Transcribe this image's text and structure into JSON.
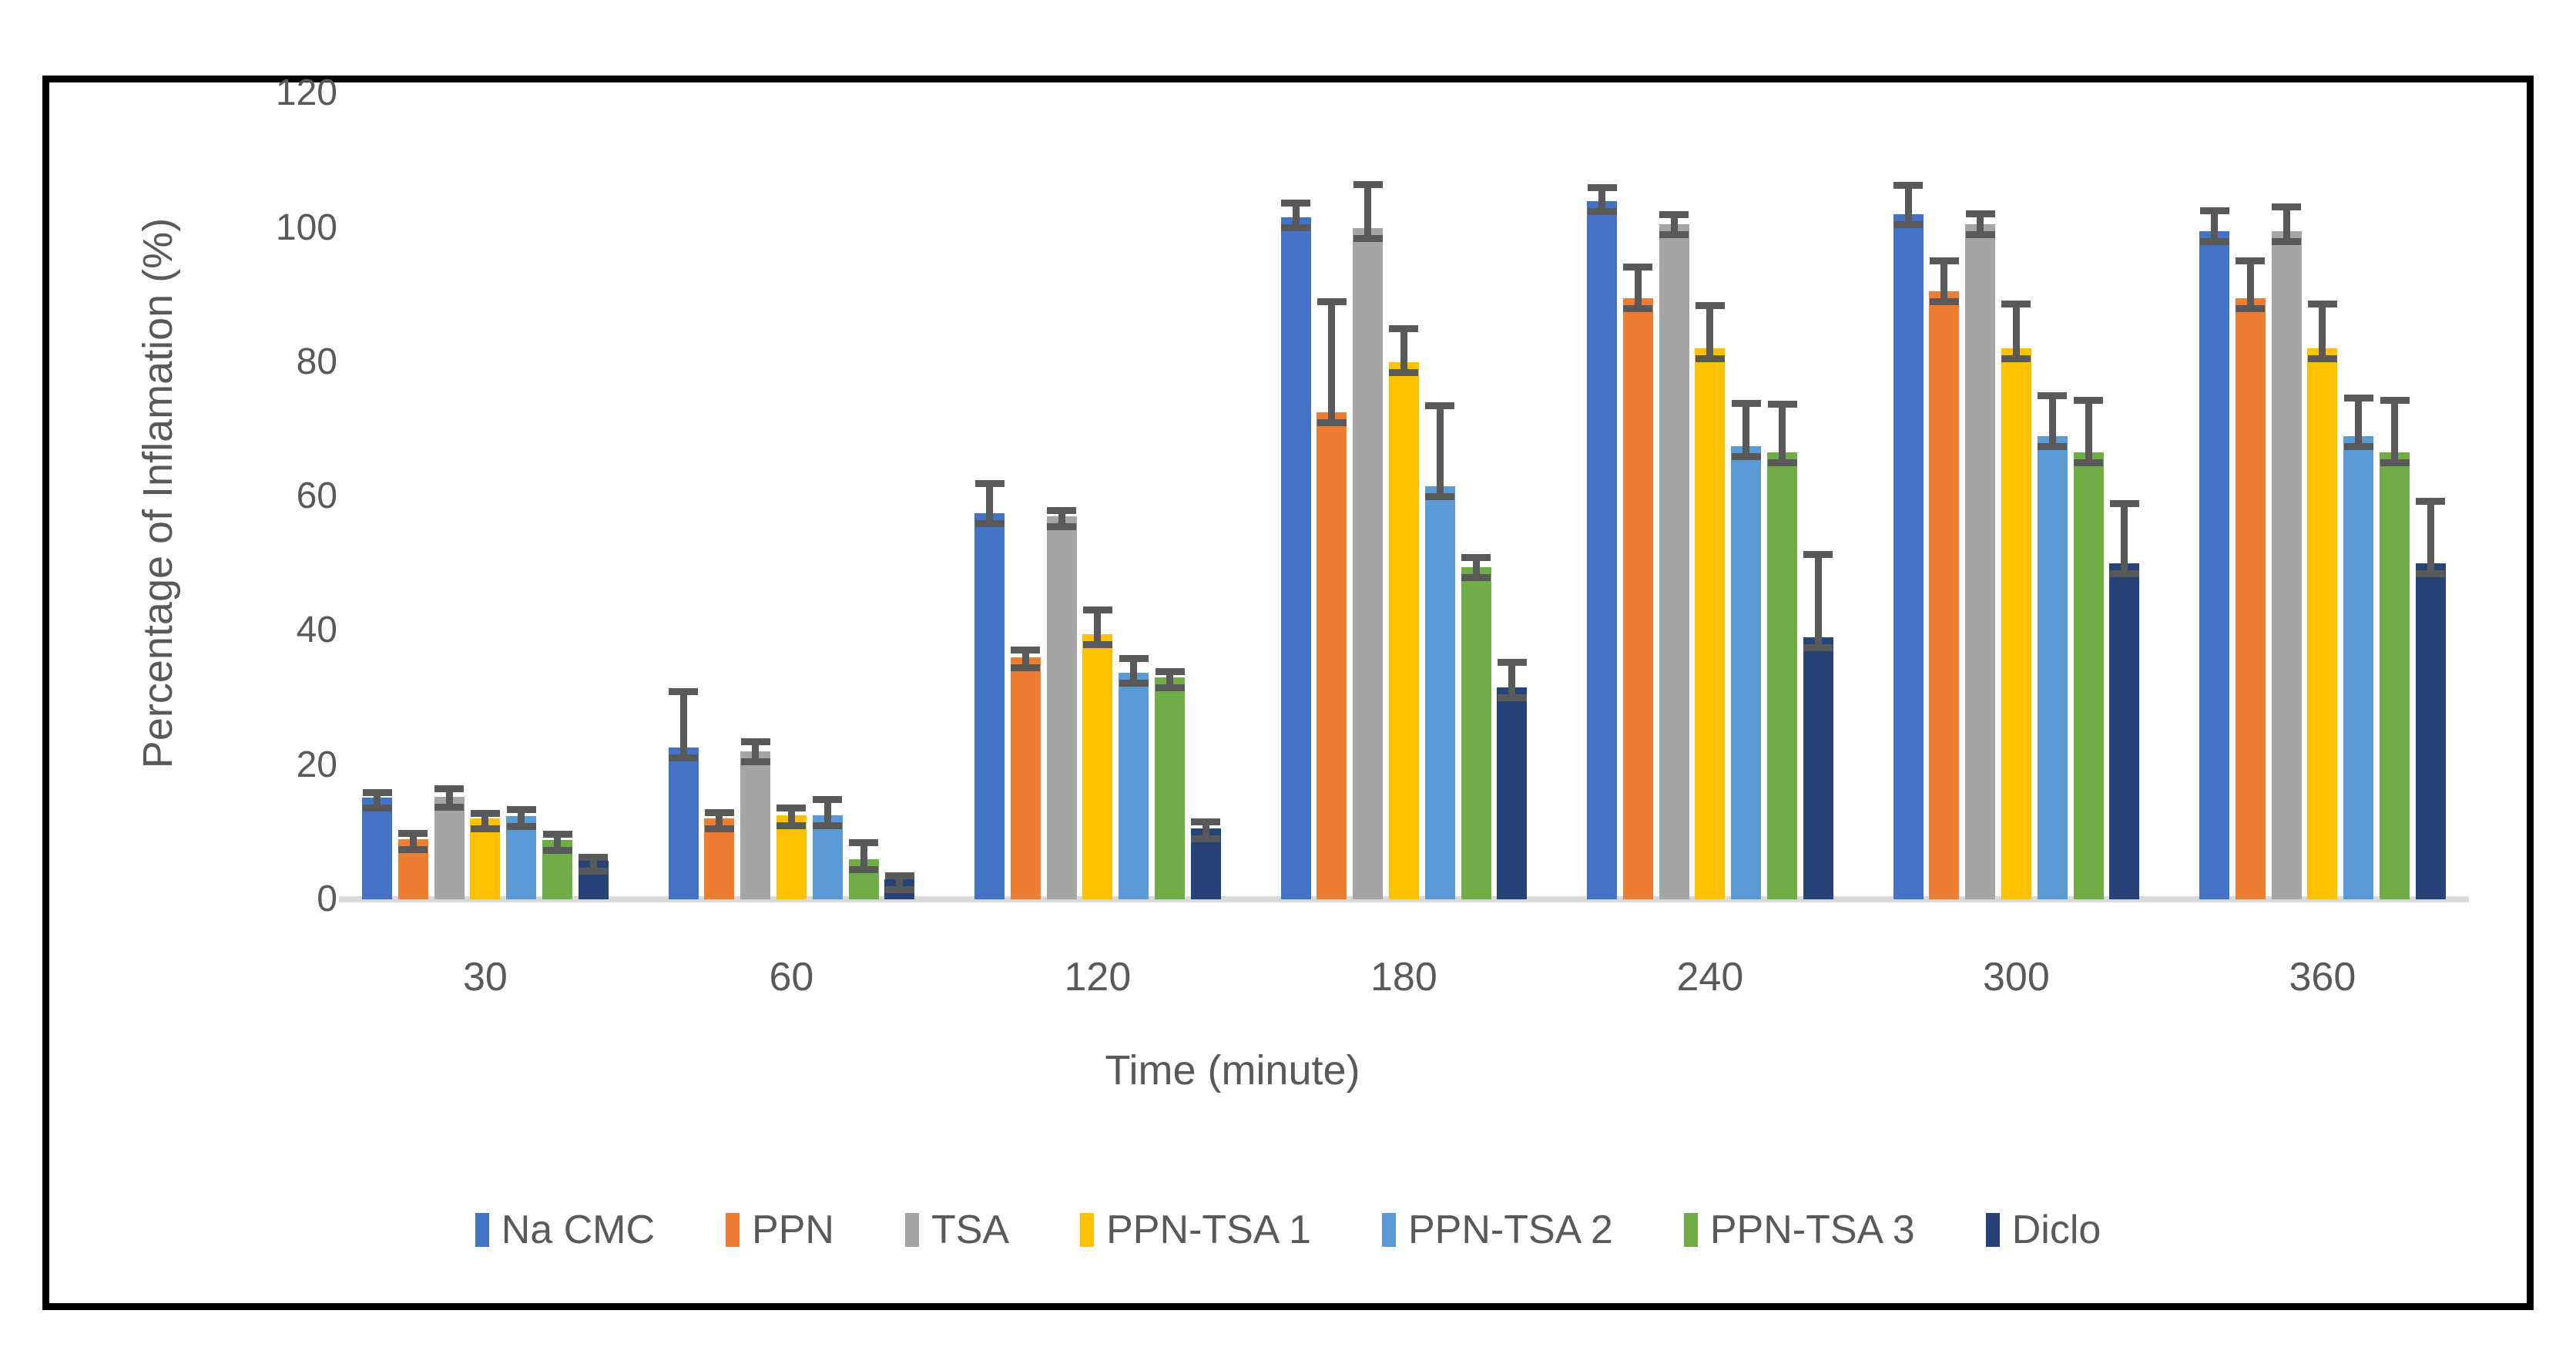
{
  "chart_data": {
    "type": "bar",
    "title": "",
    "xlabel": "Time (minute)",
    "ylabel": "Percentage of Inflamation (%)",
    "categories": [
      "30",
      "60",
      "120",
      "180",
      "240",
      "300",
      "360"
    ],
    "y_ticks": [
      0,
      20,
      40,
      60,
      80,
      100,
      120
    ],
    "ylim": [
      0,
      120
    ],
    "grid": false,
    "legend_position": "bottom-center",
    "bar_unit": "percent inflammation",
    "error_bars": "plus direction, capped",
    "colors": {
      "axis_text": "#595959",
      "error_bar": "#595959",
      "baseline": "#D9D9D9",
      "frame_border": "#000000",
      "background": "#FFFFFF"
    },
    "series": [
      {
        "name": "Na CMC",
        "color": "#4472C4",
        "values": [
          15.2,
          22.6,
          57.5,
          101.5,
          104.0,
          102.0,
          99.5
        ],
        "errors": [
          0.8,
          8.4,
          4.5,
          2.2,
          2.0,
          4.4,
          3.1
        ]
      },
      {
        "name": "PPN",
        "color": "#ED7D31",
        "values": [
          9.0,
          12.0,
          36.0,
          72.5,
          89.5,
          90.5,
          89.5
        ],
        "errors": [
          0.9,
          1.0,
          1.2,
          16.5,
          4.7,
          4.6,
          5.6
        ]
      },
      {
        "name": "TSA",
        "color": "#A5A5A5",
        "values": [
          15.3,
          22.0,
          57.0,
          100.0,
          100.5,
          100.5,
          99.5
        ],
        "errors": [
          1.2,
          1.5,
          1.0,
          6.5,
          1.5,
          1.6,
          3.7
        ]
      },
      {
        "name": "PPN-TSA 1",
        "color": "#FFC000",
        "values": [
          12.0,
          12.5,
          39.5,
          80.0,
          82.0,
          82.0,
          82.0
        ],
        "errors": [
          0.9,
          1.2,
          3.6,
          5.0,
          6.5,
          6.7,
          6.7
        ]
      },
      {
        "name": "PPN-TSA 2",
        "color": "#5B9BD5",
        "values": [
          12.4,
          12.5,
          33.7,
          61.5,
          67.5,
          69.0,
          69.0
        ],
        "errors": [
          1.0,
          2.4,
          2.2,
          12.0,
          6.4,
          6.0,
          5.7
        ]
      },
      {
        "name": "PPN-TSA 3",
        "color": "#70AD47",
        "values": [
          8.8,
          6.0,
          33.0,
          49.5,
          66.5,
          66.5,
          66.5
        ],
        "errors": [
          0.9,
          2.5,
          1.0,
          1.5,
          7.3,
          7.8,
          7.9
        ]
      },
      {
        "name": "Diclo",
        "color": "#264478",
        "values": [
          5.7,
          3.0,
          10.5,
          31.5,
          39.0,
          50.0,
          50.0
        ],
        "errors": [
          0.6,
          0.6,
          1.1,
          3.8,
          12.4,
          9.0,
          9.3
        ]
      }
    ]
  }
}
